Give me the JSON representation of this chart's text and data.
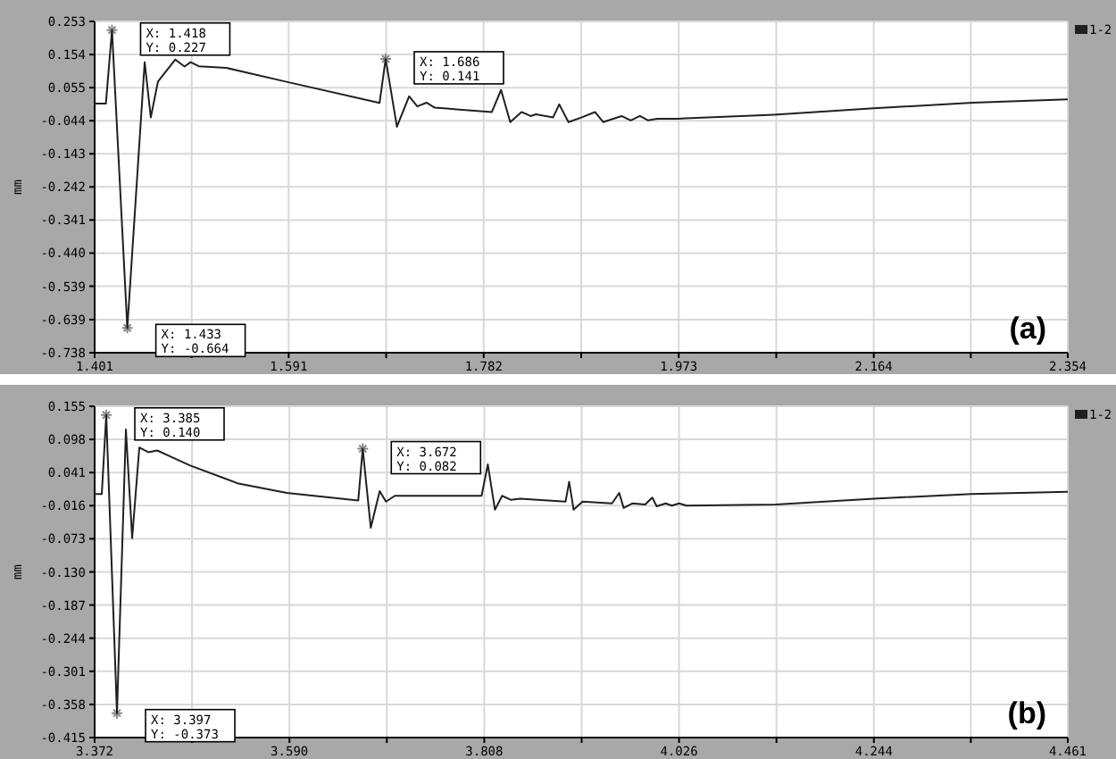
{
  "chart_data": [
    {
      "type": "line",
      "ylabel": "mm",
      "legend": "top right",
      "grid": true,
      "xlim": [
        1.401,
        2.354
      ],
      "xticks": [
        1.401,
        {
          "value": 1.496,
          "label": null
        },
        1.591,
        {
          "value": 1.6865,
          "label": null
        },
        1.782,
        {
          "value": 1.8775,
          "label": null
        },
        1.973,
        {
          "value": 2.0685,
          "label": null
        },
        2.164,
        {
          "value": 2.259,
          "label": null
        },
        2.354
      ],
      "ylim": [
        -0.738,
        0.253
      ],
      "yticks": [
        0.253,
        0.154,
        0.055,
        -0.044,
        -0.143,
        -0.242,
        -0.341,
        {
          "value": -0.44,
          "label": "-0.440"
        },
        -0.539,
        -0.639,
        -0.738
      ],
      "series": [
        {
          "name": "1-2",
          "color": "#202020",
          "x": [
            1.401,
            1.412,
            1.418,
            1.433,
            1.45,
            1.456,
            1.463,
            1.48,
            1.489,
            1.495,
            1.503,
            1.53,
            1.588,
            1.68,
            1.686,
            1.697,
            1.709,
            1.717,
            1.726,
            1.734,
            1.79,
            1.799,
            1.808,
            1.819,
            1.828,
            1.833,
            1.85,
            1.856,
            1.865,
            1.877,
            1.891,
            1.899,
            1.917,
            1.926,
            1.935,
            1.943,
            1.952,
            1.973,
            2.066,
            2.164,
            2.261,
            2.354
          ],
          "values": [
            0.007,
            0.007,
            0.227,
            -0.664,
            0.131,
            -0.034,
            0.073,
            0.139,
            0.118,
            0.131,
            0.119,
            0.114,
            0.073,
            0.009,
            0.141,
            -0.062,
            0.029,
            -0.001,
            0.01,
            -0.005,
            -0.018,
            0.048,
            -0.048,
            -0.018,
            -0.03,
            -0.025,
            -0.034,
            0.005,
            -0.048,
            -0.035,
            -0.018,
            -0.048,
            -0.03,
            -0.043,
            -0.03,
            -0.043,
            -0.038,
            -0.038,
            -0.026,
            -0.007,
            0.01,
            0.02
          ]
        }
      ],
      "annotations": [
        {
          "text": "X: 1.418\nY: 0.227",
          "x": 1.418,
          "y": 0.227
        },
        {
          "text": "X: 1.433\nY: -0.664",
          "x": 1.433,
          "y": -0.664
        },
        {
          "text": "X: 1.686\nY: 0.141",
          "x": 1.686,
          "y": 0.141
        },
        "(a)"
      ]
    },
    {
      "type": "line",
      "ylabel": "mm",
      "legend": "top right",
      "grid": true,
      "xlim": [
        3.372,
        4.461
      ],
      "xticks": [
        3.372,
        {
          "value": 3.481,
          "label": null
        },
        {
          "value": 3.59,
          "label": "3.590"
        },
        {
          "value": 3.699,
          "label": null
        },
        3.808,
        {
          "value": 3.917,
          "label": null
        },
        4.026,
        {
          "value": 4.135,
          "label": null
        },
        4.244,
        {
          "value": 4.3525,
          "label": null
        },
        4.461
      ],
      "ylim": [
        -0.415,
        0.155
      ],
      "yticks": [
        0.155,
        0.098,
        0.041,
        -0.016,
        -0.073,
        {
          "value": -0.13,
          "label": "-0.130"
        },
        -0.187,
        -0.244,
        -0.301,
        -0.358,
        -0.415
      ],
      "series": [
        {
          "name": "1-2",
          "color": "#202020",
          "x": [
            3.372,
            3.38,
            3.385,
            3.397,
            3.407,
            3.414,
            3.422,
            3.432,
            3.442,
            3.479,
            3.533,
            3.587,
            3.667,
            3.672,
            3.681,
            3.691,
            3.698,
            3.708,
            3.805,
            3.812,
            3.82,
            3.828,
            3.838,
            3.848,
            3.899,
            3.903,
            3.908,
            3.918,
            3.951,
            3.959,
            3.964,
            3.974,
            3.988,
            3.996,
            4.001,
            4.011,
            4.018,
            4.026,
            4.034,
            4.134,
            4.244,
            4.353,
            4.461
          ],
          "values": [
            0.004,
            0.004,
            0.14,
            -0.373,
            0.115,
            -0.072,
            0.084,
            0.076,
            0.079,
            0.053,
            0.022,
            0.006,
            -0.007,
            0.082,
            -0.054,
            0.009,
            -0.009,
            0.001,
            0.001,
            0.055,
            -0.023,
            0.001,
            -0.006,
            -0.004,
            -0.009,
            0.025,
            -0.023,
            -0.009,
            -0.012,
            0.006,
            -0.02,
            -0.012,
            -0.014,
            -0.002,
            -0.017,
            -0.012,
            -0.016,
            -0.012,
            -0.016,
            -0.014,
            -0.004,
            0.004,
            0.008
          ]
        }
      ],
      "annotations": [
        {
          "text": "X: 3.385\nY: 0.140",
          "x": 3.385,
          "y": 0.14
        },
        {
          "text": "X: 3.397\nY: -0.373",
          "x": 3.397,
          "y": -0.373
        },
        {
          "text": "X: 3.672\nY: 0.082",
          "x": 3.672,
          "y": 0.082
        },
        "(b)"
      ]
    }
  ]
}
